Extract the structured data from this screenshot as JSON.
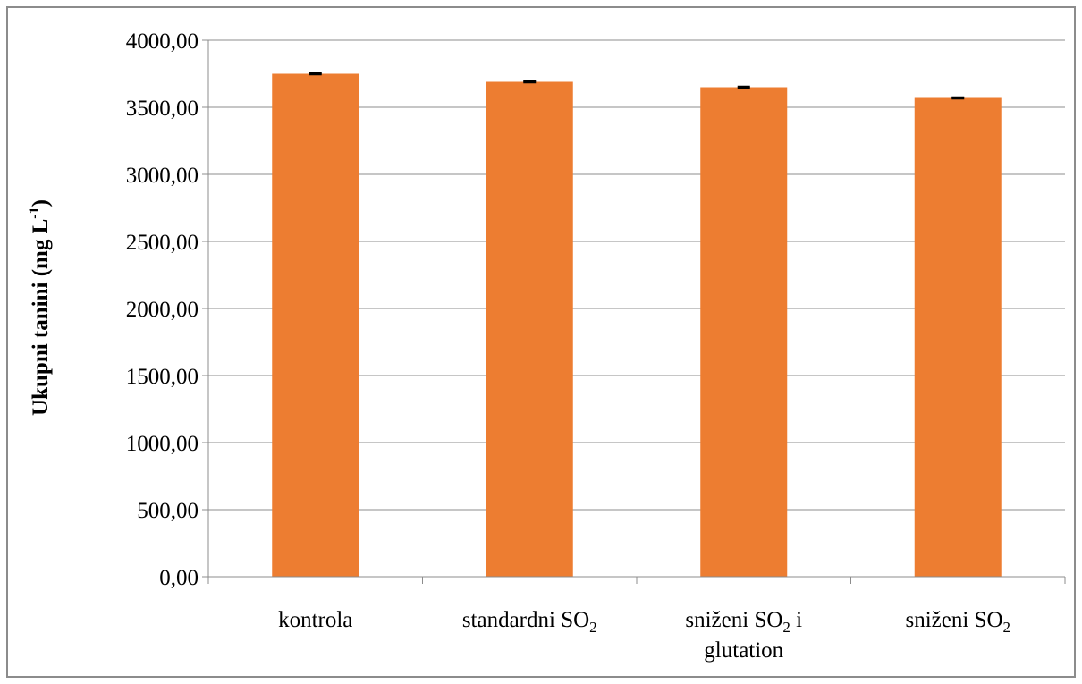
{
  "chart_data": {
    "type": "bar",
    "title": "",
    "xlabel": "",
    "ylabel": {
      "main": "Ukupni tanini (mg L",
      "superscript": "-1",
      "tail": ")"
    },
    "categories": [
      {
        "lines": [
          {
            "text": "kontrola",
            "sub": ""
          }
        ]
      },
      {
        "lines": [
          {
            "text": "standardni SO",
            "sub": "2"
          }
        ]
      },
      {
        "lines": [
          {
            "text": "sniženi SO",
            "sub": "2",
            "after": " i"
          },
          {
            "text": "glutation",
            "sub": ""
          }
        ]
      },
      {
        "lines": [
          {
            "text": "sniženi SO",
            "sub": "2"
          }
        ]
      }
    ],
    "category_names": [
      "kontrola",
      "standardni SO2",
      "sniženi SO2 i glutation",
      "sniženi SO2"
    ],
    "values": [
      3750,
      3690,
      3650,
      3570
    ],
    "error": [
      5,
      5,
      5,
      5
    ],
    "ylim": [
      0,
      4000
    ],
    "yticks": [
      0,
      500,
      1000,
      1500,
      2000,
      2500,
      3000,
      3500,
      4000
    ],
    "ytick_labels": [
      "0,00",
      "500,00",
      "1000,00",
      "1500,00",
      "2000,00",
      "2500,00",
      "3000,00",
      "3500,00",
      "4000,00"
    ],
    "grid": true,
    "legend": "none",
    "colors": {
      "bar": "#ed7d31",
      "grid": "#8c8c8c",
      "axis": "#8c8c8c",
      "error_bar": "#000000",
      "frame": "#8c8c8c"
    }
  }
}
